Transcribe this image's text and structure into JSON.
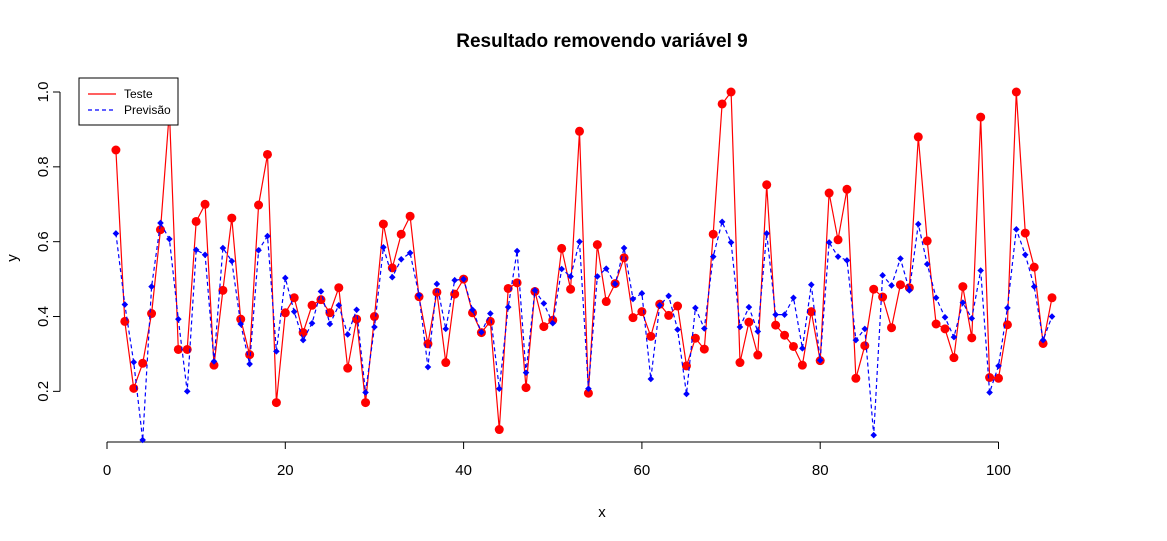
{
  "chart_data": {
    "type": "line",
    "title": "Resultado removendo variável 9",
    "xlabel": "x",
    "ylabel": "y",
    "xlim": [
      0,
      106
    ],
    "ylim": [
      0.07,
      1.0
    ],
    "x_ticks": [
      0,
      20,
      40,
      60,
      80,
      100
    ],
    "y_ticks": [
      0.2,
      0.4,
      0.6,
      0.8,
      1.0
    ],
    "x_tick_labels": [
      "0",
      "20",
      "40",
      "60",
      "80",
      "100"
    ],
    "y_tick_labels": [
      "0.2",
      "0.4",
      "0.6",
      "0.8",
      "1.0"
    ],
    "grid": false,
    "legend_position": "top-left",
    "series": [
      {
        "name": "Teste",
        "color": "#ff0000",
        "line_style": "solid",
        "marker": "circle",
        "values": [
          0.845,
          0.387,
          0.208,
          0.275,
          0.408,
          0.632,
          0.95,
          0.312,
          0.312,
          0.654,
          0.7,
          0.27,
          0.47,
          0.663,
          0.393,
          0.298,
          0.698,
          0.833,
          0.17,
          0.41,
          0.45,
          0.357,
          0.43,
          0.445,
          0.41,
          0.477,
          0.262,
          0.393,
          0.17,
          0.4,
          0.647,
          0.53,
          0.62,
          0.668,
          0.453,
          0.327,
          0.465,
          0.277,
          0.46,
          0.5,
          0.41,
          0.357,
          0.387,
          0.098,
          0.475,
          0.49,
          0.21,
          0.467,
          0.373,
          0.39,
          0.582,
          0.473,
          0.895,
          0.195,
          0.592,
          0.44,
          0.488,
          0.557,
          0.397,
          0.413,
          0.347,
          0.433,
          0.403,
          0.428,
          0.268,
          0.342,
          0.313,
          0.62,
          0.968,
          1.0,
          0.277,
          0.385,
          0.297,
          0.752,
          0.377,
          0.35,
          0.32,
          0.27,
          0.413,
          0.282,
          0.73,
          0.605,
          0.74,
          0.235,
          0.322,
          0.473,
          0.452,
          0.37,
          0.485,
          0.477,
          0.88,
          0.602,
          0.38,
          0.367,
          0.29,
          0.48,
          0.343,
          0.933,
          0.237,
          0.235,
          0.378,
          1.0,
          0.623,
          0.532,
          0.328,
          0.45
        ]
      },
      {
        "name": "Previsão",
        "color": "#0000ff",
        "line_style": "dashed",
        "marker": "diamond",
        "values": [
          0.622,
          0.432,
          0.278,
          0.07,
          0.48,
          0.65,
          0.607,
          0.393,
          0.2,
          0.578,
          0.565,
          0.28,
          0.583,
          0.548,
          0.38,
          0.273,
          0.577,
          0.615,
          0.307,
          0.503,
          0.413,
          0.337,
          0.382,
          0.467,
          0.38,
          0.43,
          0.352,
          0.418,
          0.197,
          0.372,
          0.585,
          0.505,
          0.553,
          0.57,
          0.457,
          0.265,
          0.487,
          0.367,
          0.497,
          0.5,
          0.418,
          0.358,
          0.408,
          0.207,
          0.425,
          0.575,
          0.25,
          0.47,
          0.435,
          0.382,
          0.527,
          0.507,
          0.6,
          0.207,
          0.507,
          0.528,
          0.487,
          0.583,
          0.447,
          0.462,
          0.233,
          0.43,
          0.455,
          0.365,
          0.193,
          0.423,
          0.368,
          0.56,
          0.653,
          0.598,
          0.372,
          0.425,
          0.36,
          0.622,
          0.405,
          0.405,
          0.45,
          0.315,
          0.485,
          0.283,
          0.598,
          0.56,
          0.55,
          0.337,
          0.367,
          0.083,
          0.51,
          0.483,
          0.555,
          0.47,
          0.647,
          0.54,
          0.45,
          0.398,
          0.345,
          0.437,
          0.395,
          0.523,
          0.197,
          0.268,
          0.423,
          0.633,
          0.565,
          0.48,
          0.337,
          0.4
        ]
      }
    ]
  }
}
